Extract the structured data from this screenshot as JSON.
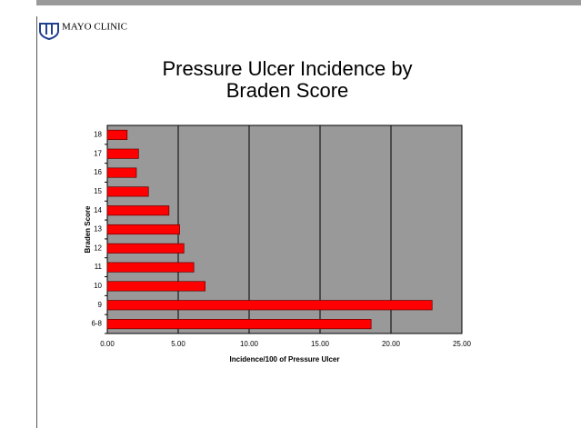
{
  "header": {
    "logo_text": "MAYO CLINIC"
  },
  "chart_data": {
    "type": "hbar",
    "title": "Pressure Ulcer Incidence by Braden Score",
    "x_label": "Incidence/100 of Pressure Ulcer",
    "y_label": "Braden Score",
    "categories": [
      "6-8",
      "9",
      "10",
      "11",
      "12",
      "13",
      "14",
      "15",
      "16",
      "17",
      "18"
    ],
    "values": [
      18.6,
      22.9,
      6.9,
      6.1,
      5.4,
      5.1,
      4.35,
      2.9,
      2.05,
      2.2,
      1.4
    ],
    "color": "#ff0000",
    "xlim": [
      0,
      25
    ],
    "xticks": [
      {
        "value": 0,
        "label": "0.00"
      },
      {
        "value": 5,
        "label": "5.00"
      },
      {
        "value": 10,
        "label": "10.00"
      },
      {
        "value": 15,
        "label": "15.00"
      },
      {
        "value": 20,
        "label": "20.00"
      },
      {
        "value": 25,
        "label": "25.00"
      }
    ],
    "grid": true
  }
}
